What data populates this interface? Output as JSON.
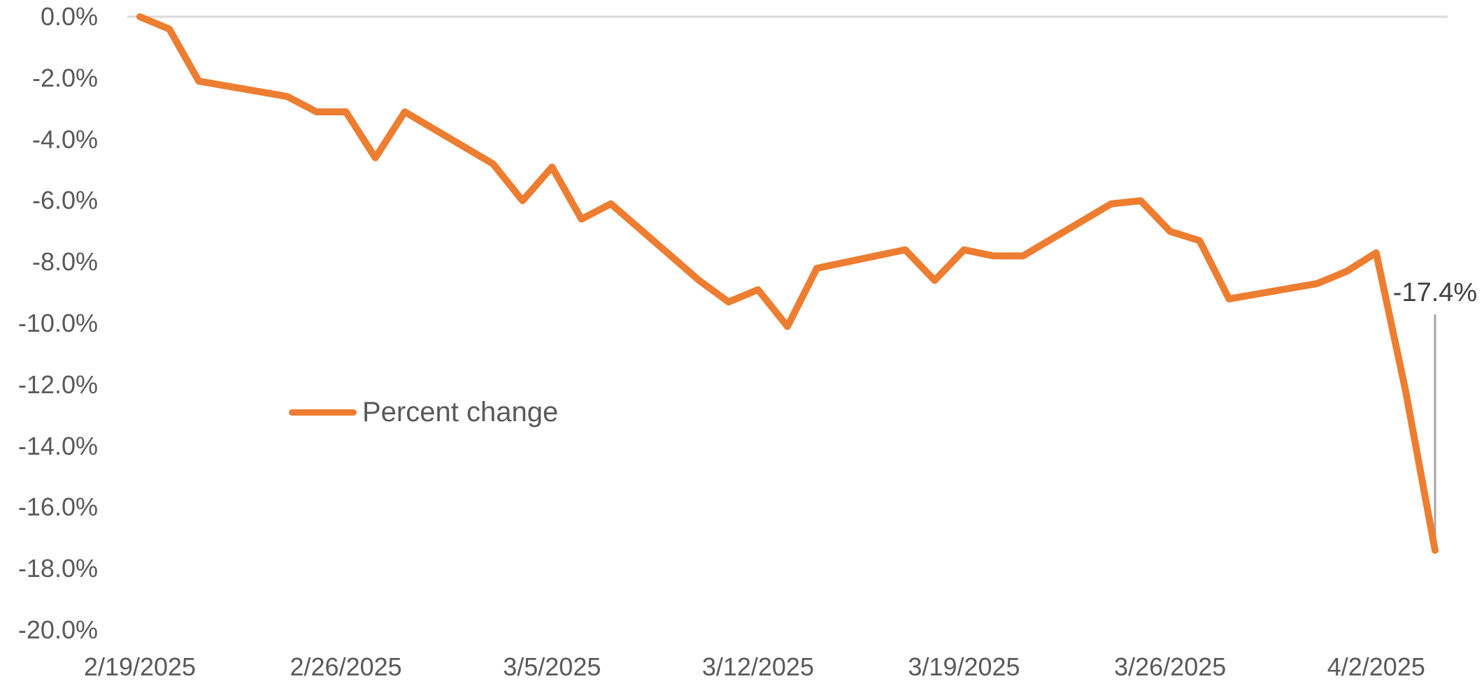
{
  "chart_data": {
    "type": "line",
    "title": "",
    "x": [
      "2/19/2025",
      "2/20/2025",
      "2/21/2025",
      "2/24/2025",
      "2/25/2025",
      "2/26/2025",
      "2/27/2025",
      "2/28/2025",
      "3/3/2025",
      "3/4/2025",
      "3/5/2025",
      "3/6/2025",
      "3/7/2025",
      "3/10/2025",
      "3/11/2025",
      "3/12/2025",
      "3/13/2025",
      "3/14/2025",
      "3/17/2025",
      "3/18/2025",
      "3/19/2025",
      "3/20/2025",
      "3/21/2025",
      "3/24/2025",
      "3/25/2025",
      "3/26/2025",
      "3/27/2025",
      "3/28/2025",
      "3/31/2025",
      "4/1/2025",
      "4/2/2025",
      "4/3/2025",
      "4/4/2025"
    ],
    "series": [
      {
        "name": "Percent change",
        "values": [
          0.0,
          -0.4,
          -2.1,
          -2.6,
          -3.1,
          -3.1,
          -4.6,
          -3.1,
          -4.8,
          -6.0,
          -4.9,
          -6.6,
          -6.1,
          -8.6,
          -9.3,
          -8.9,
          -10.1,
          -8.2,
          -7.6,
          -8.6,
          -7.6,
          -7.8,
          -7.8,
          -6.1,
          -6.0,
          -7.0,
          -7.3,
          -9.2,
          -8.7,
          -8.3,
          -7.7,
          -12.2,
          -17.4
        ]
      }
    ],
    "xlabel": "",
    "ylabel": "",
    "ylim": [
      -20,
      0
    ],
    "x_tick_labels": [
      "2/19/2025",
      "2/26/2025",
      "3/5/2025",
      "3/12/2025",
      "3/19/2025",
      "3/26/2025",
      "4/2/2025"
    ],
    "y_tick_labels": [
      "0.0%",
      "-2.0%",
      "-4.0%",
      "-6.0%",
      "-8.0%",
      "-10.0%",
      "-12.0%",
      "-14.0%",
      "-16.0%",
      "-18.0%",
      "-20.0%"
    ],
    "grid": "zero-line-only",
    "legend_position": "inside-center-left",
    "annotation": {
      "text": "-17.4%",
      "date": "4/4/2025",
      "value": -17.4
    },
    "colors": {
      "line": "#ED7D31",
      "gridline": "#D9D9D9",
      "axis_text": "#595959",
      "annotation_text": "#404040",
      "leader_line": "#A6A6A6"
    }
  }
}
